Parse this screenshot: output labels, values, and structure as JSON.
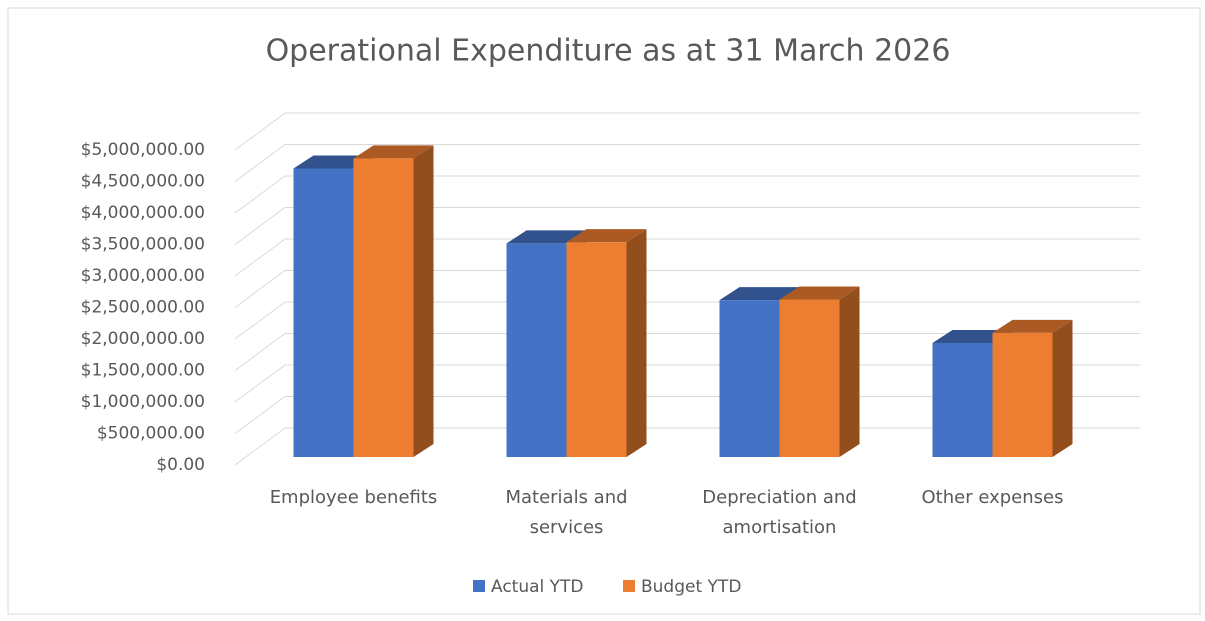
{
  "chart_data": {
    "type": "bar3d",
    "title": "Operational Expenditure as at 31 March 2026",
    "categories": [
      "Employee benefits",
      "Materials and services",
      "Depreciation and amortisation",
      "Other expenses"
    ],
    "series": [
      {
        "name": "Actual YTD",
        "color": "#4472c4",
        "values": [
          4580000,
          3390000,
          2490000,
          1810000
        ]
      },
      {
        "name": "Budget YTD",
        "color": "#ed7d31",
        "values": [
          4740000,
          3410000,
          2500000,
          1970000
        ]
      }
    ],
    "ylim": [
      0,
      5000000
    ],
    "yticks": [
      {
        "value": 0,
        "label": "$0.00"
      },
      {
        "value": 500000,
        "label": "$500,000.00"
      },
      {
        "value": 1000000,
        "label": "$1,000,000.00"
      },
      {
        "value": 1500000,
        "label": "$1,500,000.00"
      },
      {
        "value": 2000000,
        "label": "$2,000,000.00"
      },
      {
        "value": 2500000,
        "label": "$2,500,000.00"
      },
      {
        "value": 3000000,
        "label": "$3,000,000.00"
      },
      {
        "value": 3500000,
        "label": "$3,500,000.00"
      },
      {
        "value": 4000000,
        "label": "$4,000,000.00"
      },
      {
        "value": 4500000,
        "label": "$4,500,000.00"
      },
      {
        "value": 5000000,
        "label": "$5,000,000.00"
      }
    ],
    "grid": true,
    "legend": "bottom"
  }
}
